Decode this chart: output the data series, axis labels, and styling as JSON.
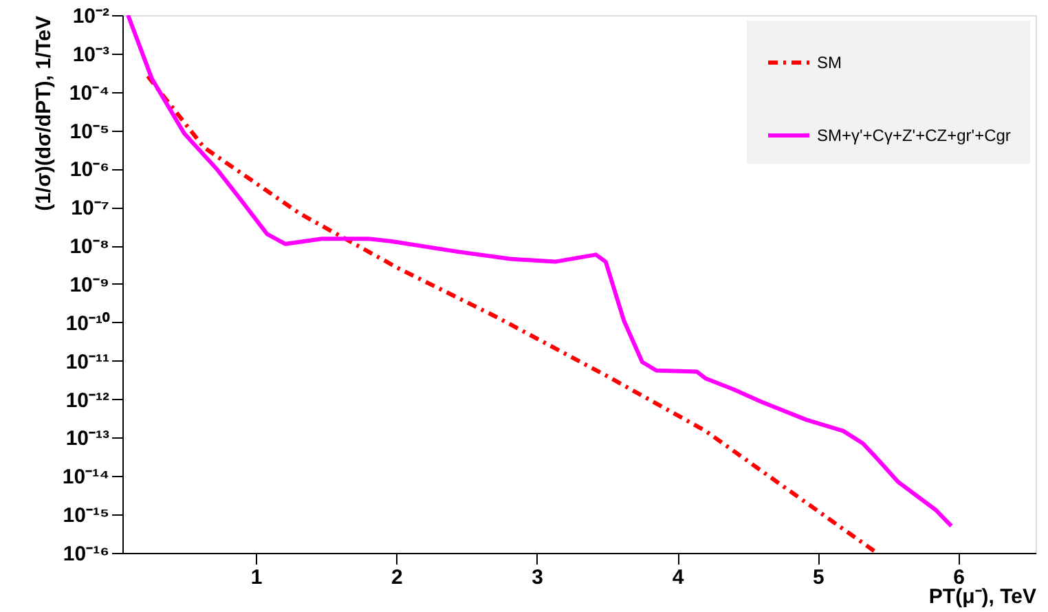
{
  "chart_data": {
    "type": "line",
    "xlabel": "PT(μ⁻), TeV",
    "ylabel": "(1/σ)(dσ/dPT), 1/TeV",
    "log": "y",
    "grid": false,
    "legend": "top right",
    "marker": "none",
    "xlim": [
      0.05,
      6.55
    ],
    "xticks": [
      1,
      2,
      3,
      4,
      5,
      6
    ],
    "ylim": [
      1e-16,
      0.01
    ],
    "yticks": [
      {
        "value": 0.01,
        "label": "10⁻²"
      },
      {
        "value": 0.001,
        "label": "10⁻³"
      },
      {
        "value": 0.0001,
        "label": "10⁻⁴"
      },
      {
        "value": 1e-05,
        "label": "10⁻⁵"
      },
      {
        "value": 1e-06,
        "label": "10⁻⁶"
      },
      {
        "value": 1e-07,
        "label": "10⁻⁷"
      },
      {
        "value": 1e-08,
        "label": "10⁻⁸"
      },
      {
        "value": 1e-09,
        "label": "10⁻⁹"
      },
      {
        "value": 1e-10,
        "label": "10⁻¹⁰"
      },
      {
        "value": 1e-11,
        "label": "10⁻¹¹"
      },
      {
        "value": 1e-12,
        "label": "10⁻¹²"
      },
      {
        "value": 1e-13,
        "label": "10⁻¹³"
      },
      {
        "value": 1e-14,
        "label": "10⁻¹⁴"
      },
      {
        "value": 1e-15,
        "label": "10⁻¹⁵"
      },
      {
        "value": 1e-16,
        "label": "10⁻¹⁶"
      }
    ],
    "series": [
      {
        "name": "SM",
        "color": "#ff0000",
        "line_style": "dashed",
        "x": [
          0.23,
          0.63,
          1.07,
          1.31,
          2.02,
          2.71,
          3.5,
          4.2,
          5.15,
          5.42
        ],
        "values": [
          0.00026,
          3.6e-06,
          2.8e-07,
          6.9e-08,
          2.5e-09,
          1.4e-10,
          4e-12,
          1.5e-13,
          5e-16,
          1e-16
        ]
      },
      {
        "name": "SM+γ'+Cγ+Z'+CZ+gr'+Cgr",
        "color": "#ff00ff",
        "line_style": "solid",
        "x": [
          0.09,
          0.26,
          0.49,
          0.72,
          0.88,
          1.08,
          1.21,
          1.47,
          1.8,
          1.96,
          2.44,
          2.81,
          3.13,
          3.42,
          3.49,
          3.62,
          3.75,
          3.85,
          4.14,
          4.2,
          4.4,
          4.6,
          4.92,
          5.18,
          5.32,
          5.42,
          5.57,
          5.84,
          5.95
        ],
        "values": [
          0.01,
          0.00022,
          8.3e-06,
          1e-06,
          1.8e-07,
          2e-08,
          1.1e-08,
          1.5e-08,
          1.5e-08,
          1.3e-08,
          6.9e-09,
          4.5e-09,
          3.8e-09,
          5.8e-09,
          3.8e-09,
          1.1e-10,
          9.3e-12,
          5.6e-12,
          5.2e-12,
          3.5e-12,
          1.8e-12,
          8.5e-13,
          2.9e-13,
          1.5e-13,
          7.1e-14,
          2.9e-14,
          7.1e-15,
          1.3e-15,
          5e-16
        ]
      }
    ]
  }
}
